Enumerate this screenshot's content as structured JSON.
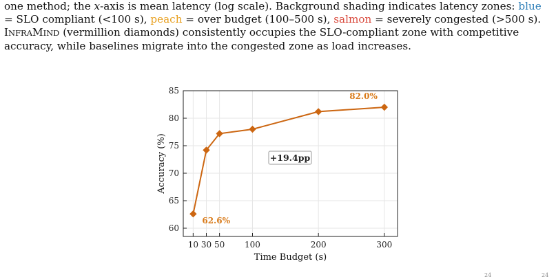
{
  "caption": {
    "line1": "one method; the ",
    "x_var": "x",
    "line1b": "-axis is mean latency (log scale). Background shading indicates latency zones: ",
    "blue_word": "blue",
    "line2a": "= SLO compliant (<100 s), ",
    "peach_word": "peach",
    "line2b": " = over budget (100–500 s), ",
    "salmon_word": "salmon",
    "line2c": " = severely congested (>500 s).",
    "infra_I": "I",
    "infra_rest1": "NFRA",
    "infra_M": "M",
    "infra_rest2": "IND",
    "line3": " (vermillion diamonds) consistently occupies the SLO-compliant zone with competitive",
    "line4": "accuracy, while baselines migrate into the congested zone as load increases."
  },
  "colors": {
    "series": "#cc6611",
    "label": "#d97b1a",
    "axis": "#222222",
    "grid": "#e6e6e6"
  },
  "chart_data": {
    "type": "line",
    "x": [
      10,
      30,
      50,
      100,
      200,
      300
    ],
    "y": [
      62.6,
      74.2,
      77.2,
      78.0,
      81.2,
      82.0
    ],
    "marker": "diamond",
    "xlabel": "Time Budget (s)",
    "ylabel": "Accuracy (%)",
    "xlim": [
      -5,
      320
    ],
    "ylim": [
      58.5,
      85
    ],
    "xticks": [
      10,
      30,
      50,
      100,
      200,
      300
    ],
    "yticks": [
      60,
      65,
      70,
      75,
      80,
      85
    ],
    "grid": true,
    "annotations": {
      "first": "62.6%",
      "last": "82.0%",
      "box": "+19.4pp"
    }
  },
  "footer": {
    "left": "24",
    "right": "24"
  }
}
